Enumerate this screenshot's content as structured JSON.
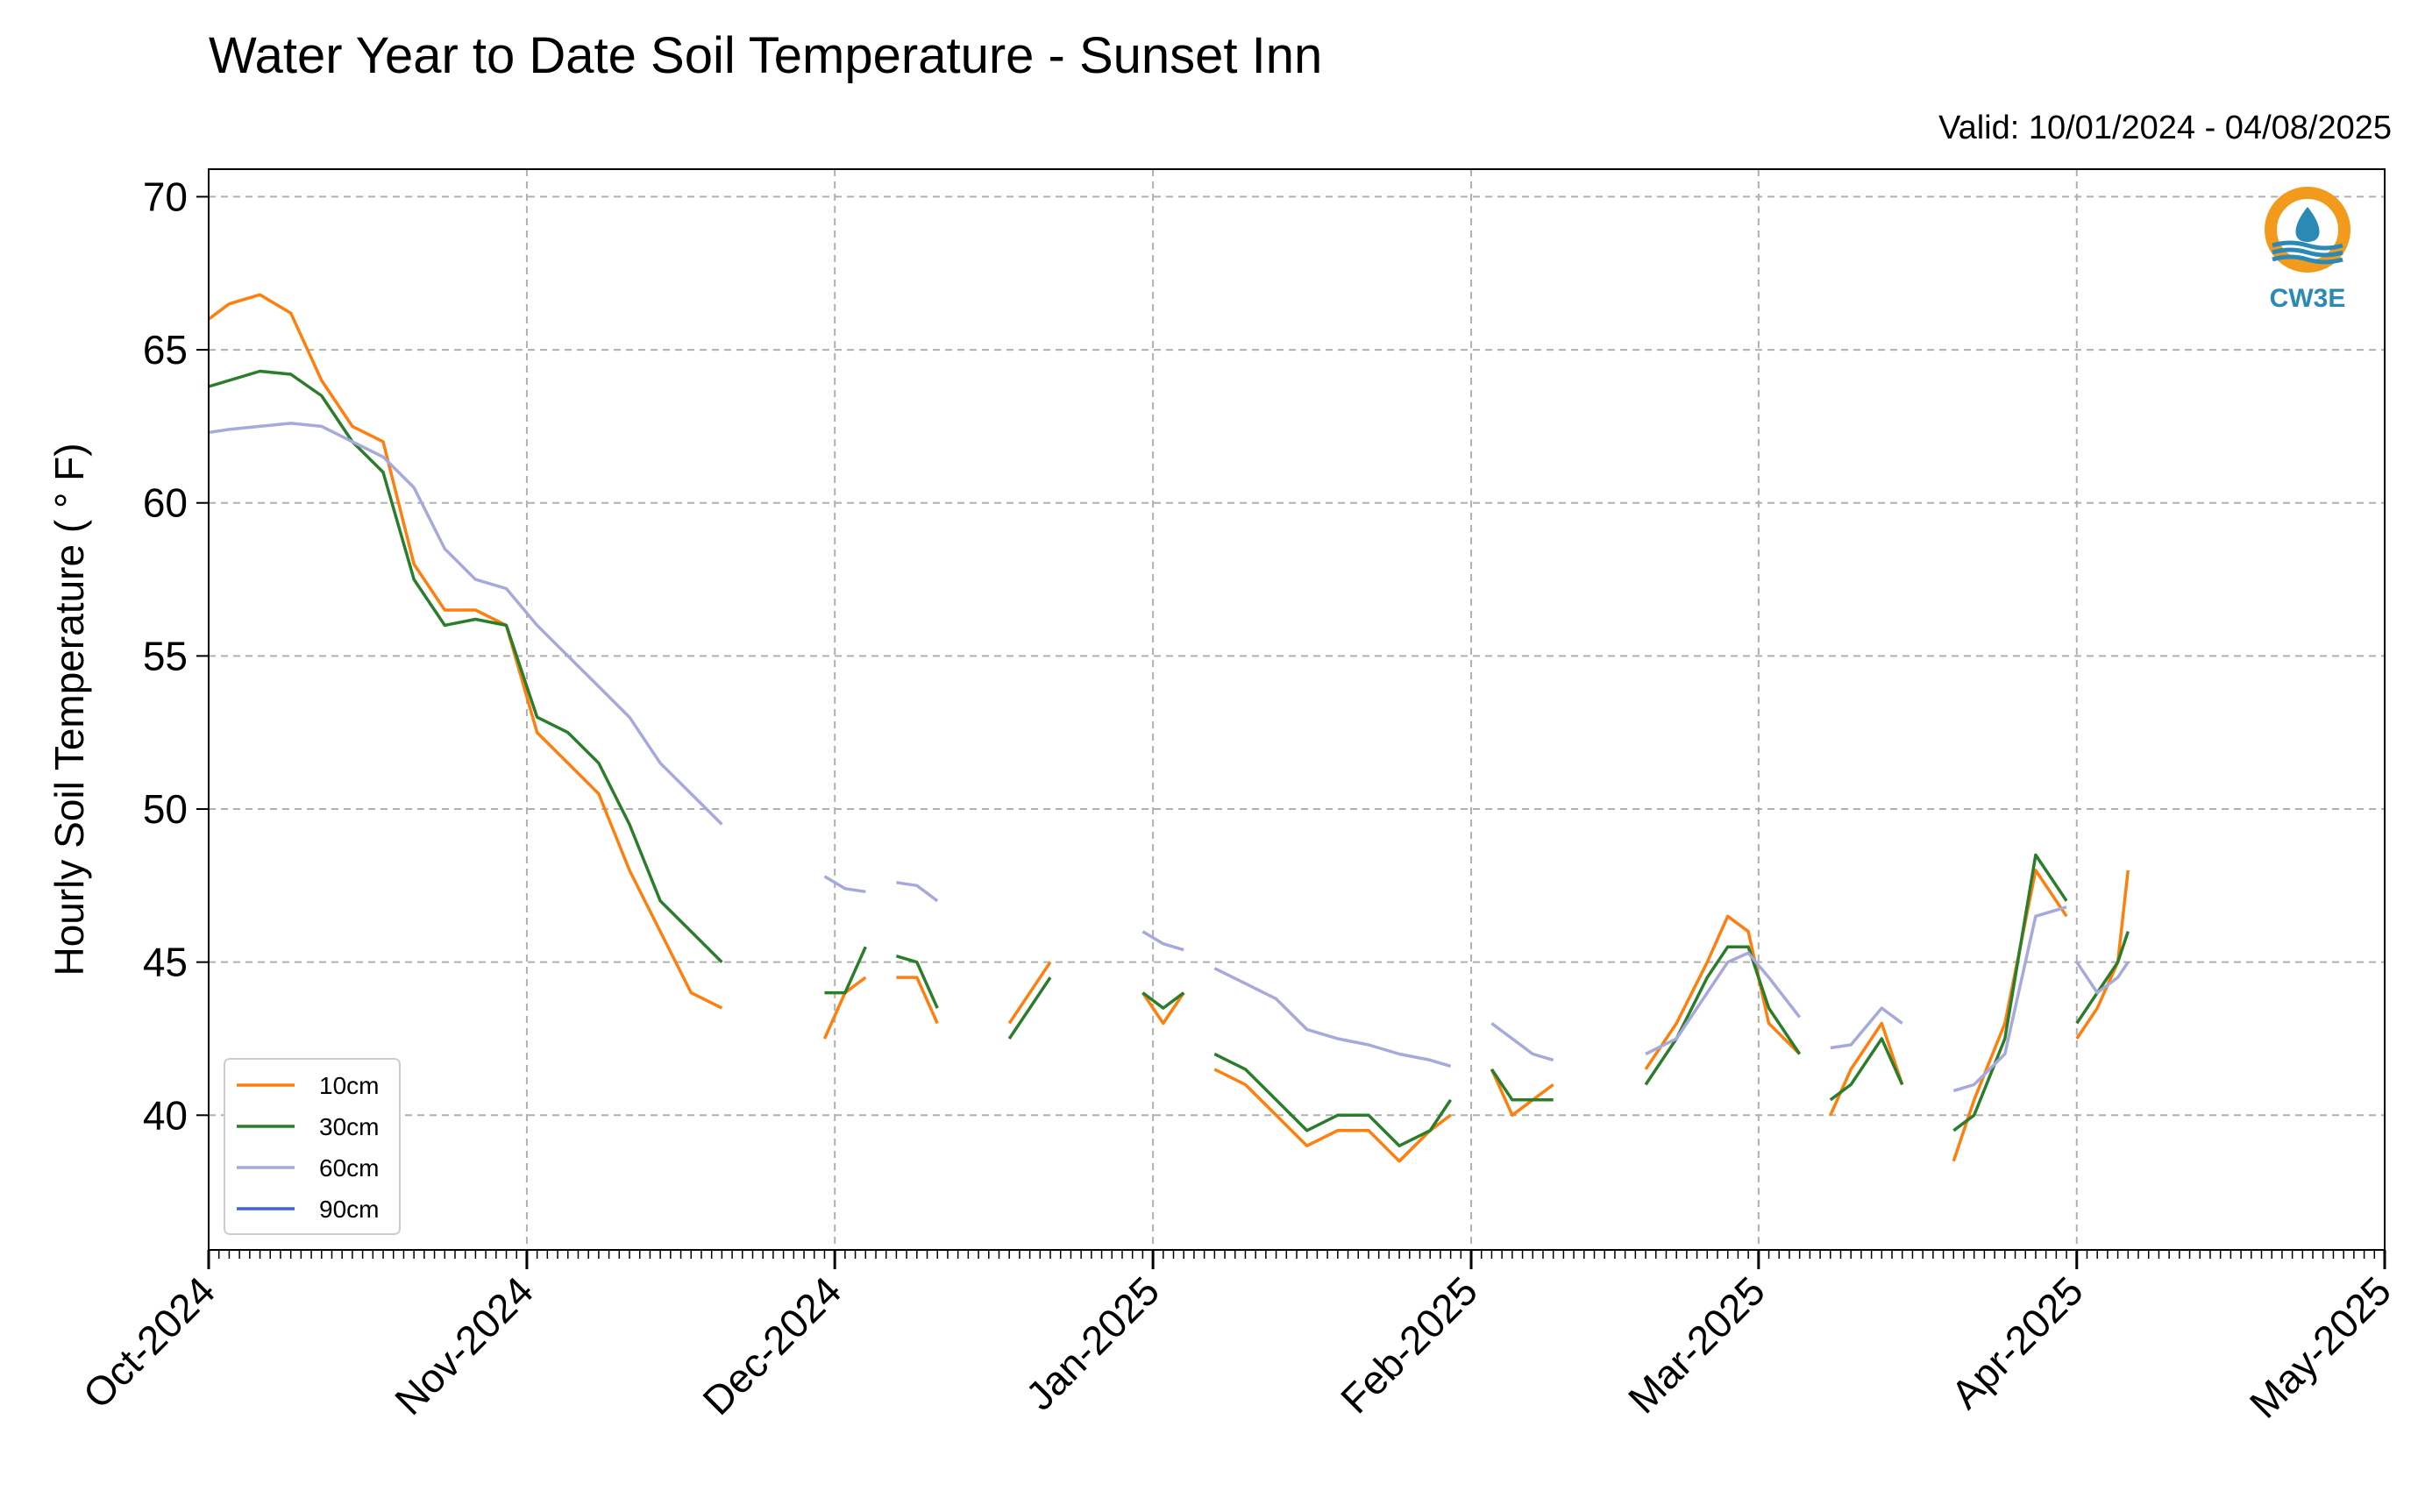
{
  "chart_data": {
    "type": "line",
    "title": "Water Year to Date Soil Temperature - Sunset Inn",
    "subtitle": "Valid: 10/01/2024 - 04/08/2025",
    "xlabel": "",
    "ylabel": "Hourly Soil Temperature ( ° F)",
    "ylim": [
      35.6,
      70.9
    ],
    "xlim": [
      "2024-10-01",
      "2025-05-01"
    ],
    "yticks": [
      "40",
      "45",
      "50",
      "55",
      "60",
      "65",
      "70"
    ],
    "xticks": [
      "Oct-2024",
      "Nov-2024",
      "Dec-2024",
      "Jan-2025",
      "Feb-2025",
      "Mar-2025",
      "Apr-2025",
      "May-2025"
    ],
    "grid": true,
    "legend_position": "lower-left",
    "series": [
      {
        "name": "10cm",
        "color": "#ff7f0e",
        "x": [
          "2024-10-01",
          "2024-10-03",
          "2024-10-06",
          "2024-10-09",
          "2024-10-12",
          "2024-10-15",
          "2024-10-18",
          "2024-10-21",
          "2024-10-24",
          "2024-10-27",
          "2024-10-30",
          "2024-11-02",
          "2024-11-05",
          "2024-11-08",
          "2024-11-11",
          "2024-11-14",
          "2024-11-17",
          "2024-11-20",
          null,
          "2024-11-30",
          "2024-12-02",
          "2024-12-04",
          null,
          "2024-12-07",
          "2024-12-09",
          "2024-12-11",
          null,
          "2024-12-18",
          "2024-12-20",
          "2024-12-22",
          null,
          "2024-12-31",
          "2025-01-02",
          "2025-01-04",
          null,
          "2025-01-07",
          "2025-01-10",
          "2025-01-13",
          "2025-01-16",
          "2025-01-19",
          "2025-01-22",
          "2025-01-25",
          "2025-01-28",
          "2025-01-30",
          null,
          "2025-02-03",
          "2025-02-05",
          "2025-02-07",
          "2025-02-09",
          null,
          "2025-02-18",
          "2025-02-21",
          "2025-02-24",
          "2025-02-26",
          "2025-02-28",
          "2025-03-02",
          "2025-03-05",
          null,
          "2025-03-08",
          "2025-03-10",
          "2025-03-13",
          "2025-03-15",
          null,
          "2025-03-20",
          "2025-03-22",
          "2025-03-25",
          "2025-03-28",
          "2025-03-31",
          null,
          "2025-04-01",
          "2025-04-03",
          "2025-04-05",
          "2025-04-06"
        ],
        "values": [
          66.0,
          66.5,
          66.8,
          66.2,
          64.0,
          62.5,
          62.0,
          58.0,
          56.5,
          56.5,
          56.0,
          52.5,
          51.5,
          50.5,
          48.0,
          46.0,
          44.0,
          43.5,
          null,
          42.5,
          44.0,
          44.5,
          null,
          44.5,
          44.5,
          43.0,
          null,
          43.0,
          44.0,
          45.0,
          null,
          44.0,
          43.0,
          44.0,
          null,
          41.5,
          41.0,
          40.0,
          39.0,
          39.5,
          39.5,
          38.5,
          39.5,
          40.0,
          null,
          41.5,
          40.0,
          40.5,
          41.0,
          null,
          41.5,
          43.0,
          45.0,
          46.5,
          46.0,
          43.0,
          42.0,
          null,
          40.0,
          41.5,
          43.0,
          41.0,
          null,
          38.5,
          40.5,
          43.0,
          48.0,
          46.5,
          null,
          42.5,
          43.5,
          45.0,
          48.0
        ]
      },
      {
        "name": "30cm",
        "color": "#2a7d2a",
        "x": [
          "2024-10-01",
          "2024-10-03",
          "2024-10-06",
          "2024-10-09",
          "2024-10-12",
          "2024-10-15",
          "2024-10-18",
          "2024-10-21",
          "2024-10-24",
          "2024-10-27",
          "2024-10-30",
          "2024-11-02",
          "2024-11-05",
          "2024-11-08",
          "2024-11-11",
          "2024-11-14",
          "2024-11-17",
          "2024-11-20",
          null,
          "2024-11-30",
          "2024-12-02",
          "2024-12-04",
          null,
          "2024-12-07",
          "2024-12-09",
          "2024-12-11",
          null,
          "2024-12-18",
          "2024-12-20",
          "2024-12-22",
          null,
          "2024-12-31",
          "2025-01-02",
          "2025-01-04",
          null,
          "2025-01-07",
          "2025-01-10",
          "2025-01-13",
          "2025-01-16",
          "2025-01-19",
          "2025-01-22",
          "2025-01-25",
          "2025-01-28",
          "2025-01-30",
          null,
          "2025-02-03",
          "2025-02-05",
          "2025-02-07",
          "2025-02-09",
          null,
          "2025-02-18",
          "2025-02-21",
          "2025-02-24",
          "2025-02-26",
          "2025-02-28",
          "2025-03-02",
          "2025-03-05",
          null,
          "2025-03-08",
          "2025-03-10",
          "2025-03-13",
          "2025-03-15",
          null,
          "2025-03-20",
          "2025-03-22",
          "2025-03-25",
          "2025-03-28",
          "2025-03-31",
          null,
          "2025-04-01",
          "2025-04-03",
          "2025-04-05",
          "2025-04-06"
        ],
        "values": [
          63.8,
          64.0,
          64.3,
          64.2,
          63.5,
          62.0,
          61.0,
          57.5,
          56.0,
          56.2,
          56.0,
          53.0,
          52.5,
          51.5,
          49.5,
          47.0,
          46.0,
          45.0,
          null,
          44.0,
          44.0,
          45.5,
          null,
          45.2,
          45.0,
          43.5,
          null,
          42.5,
          43.5,
          44.5,
          null,
          44.0,
          43.5,
          44.0,
          null,
          42.0,
          41.5,
          40.5,
          39.5,
          40.0,
          40.0,
          39.0,
          39.5,
          40.5,
          null,
          41.5,
          40.5,
          40.5,
          40.5,
          null,
          41.0,
          42.5,
          44.5,
          45.5,
          45.5,
          43.5,
          42.0,
          null,
          40.5,
          41.0,
          42.5,
          41.0,
          null,
          39.5,
          40.0,
          42.5,
          48.5,
          47.0,
          null,
          43.0,
          44.0,
          45.0,
          46.0
        ]
      },
      {
        "name": "60cm",
        "color": "#a6a9dc",
        "x": [
          "2024-10-01",
          "2024-10-03",
          "2024-10-06",
          "2024-10-09",
          "2024-10-12",
          "2024-10-15",
          "2024-10-18",
          "2024-10-21",
          "2024-10-24",
          "2024-10-27",
          "2024-10-30",
          "2024-11-02",
          "2024-11-05",
          "2024-11-08",
          "2024-11-11",
          "2024-11-14",
          "2024-11-17",
          "2024-11-20",
          null,
          "2024-11-30",
          "2024-12-02",
          "2024-12-04",
          null,
          "2024-12-07",
          "2024-12-09",
          "2024-12-11",
          null,
          "2024-12-18",
          "2024-12-20",
          "2024-12-22",
          null,
          "2024-12-31",
          "2025-01-02",
          "2025-01-04",
          null,
          "2025-01-07",
          "2025-01-10",
          "2025-01-13",
          "2025-01-16",
          "2025-01-19",
          "2025-01-22",
          "2025-01-25",
          "2025-01-28",
          "2025-01-30",
          null,
          "2025-02-03",
          "2025-02-05",
          "2025-02-07",
          "2025-02-09",
          null,
          "2025-02-18",
          "2025-02-21",
          "2025-02-24",
          "2025-02-26",
          "2025-02-28",
          "2025-03-02",
          "2025-03-05",
          null,
          "2025-03-08",
          "2025-03-10",
          "2025-03-13",
          "2025-03-15",
          null,
          "2025-03-20",
          "2025-03-22",
          "2025-03-25",
          "2025-03-28",
          "2025-03-31",
          null,
          "2025-04-01",
          "2025-04-03",
          "2025-04-05",
          "2025-04-06"
        ],
        "values": [
          62.3,
          62.4,
          62.5,
          62.6,
          62.5,
          62.0,
          61.5,
          60.5,
          58.5,
          57.5,
          57.2,
          56.0,
          55.0,
          54.0,
          53.0,
          51.5,
          50.5,
          49.5,
          null,
          47.8,
          47.4,
          47.3,
          null,
          47.6,
          47.5,
          47.0,
          null,
          null,
          null,
          null,
          null,
          46.0,
          45.6,
          45.4,
          null,
          44.8,
          44.3,
          43.8,
          42.8,
          42.5,
          42.3,
          42.0,
          41.8,
          41.6,
          null,
          43.0,
          42.5,
          42.0,
          41.8,
          null,
          42.0,
          42.5,
          44.0,
          45.0,
          45.3,
          44.5,
          43.2,
          null,
          42.2,
          42.3,
          43.5,
          43.0,
          null,
          40.8,
          41.0,
          42.0,
          46.5,
          46.8,
          null,
          45.0,
          44.0,
          44.5,
          45.0
        ]
      },
      {
        "name": "90cm",
        "color": "#3b67d6",
        "x": [],
        "values": []
      }
    ]
  },
  "legend": {
    "entries": [
      "10cm",
      "30cm",
      "60cm",
      "90cm"
    ]
  },
  "logo": {
    "text": "CW3E",
    "color": "#2a8ab5",
    "accent": "#f29a1c",
    "icon": "cw3e-water-drop-logo"
  },
  "colors": {
    "grid": "#b0b0b0"
  }
}
